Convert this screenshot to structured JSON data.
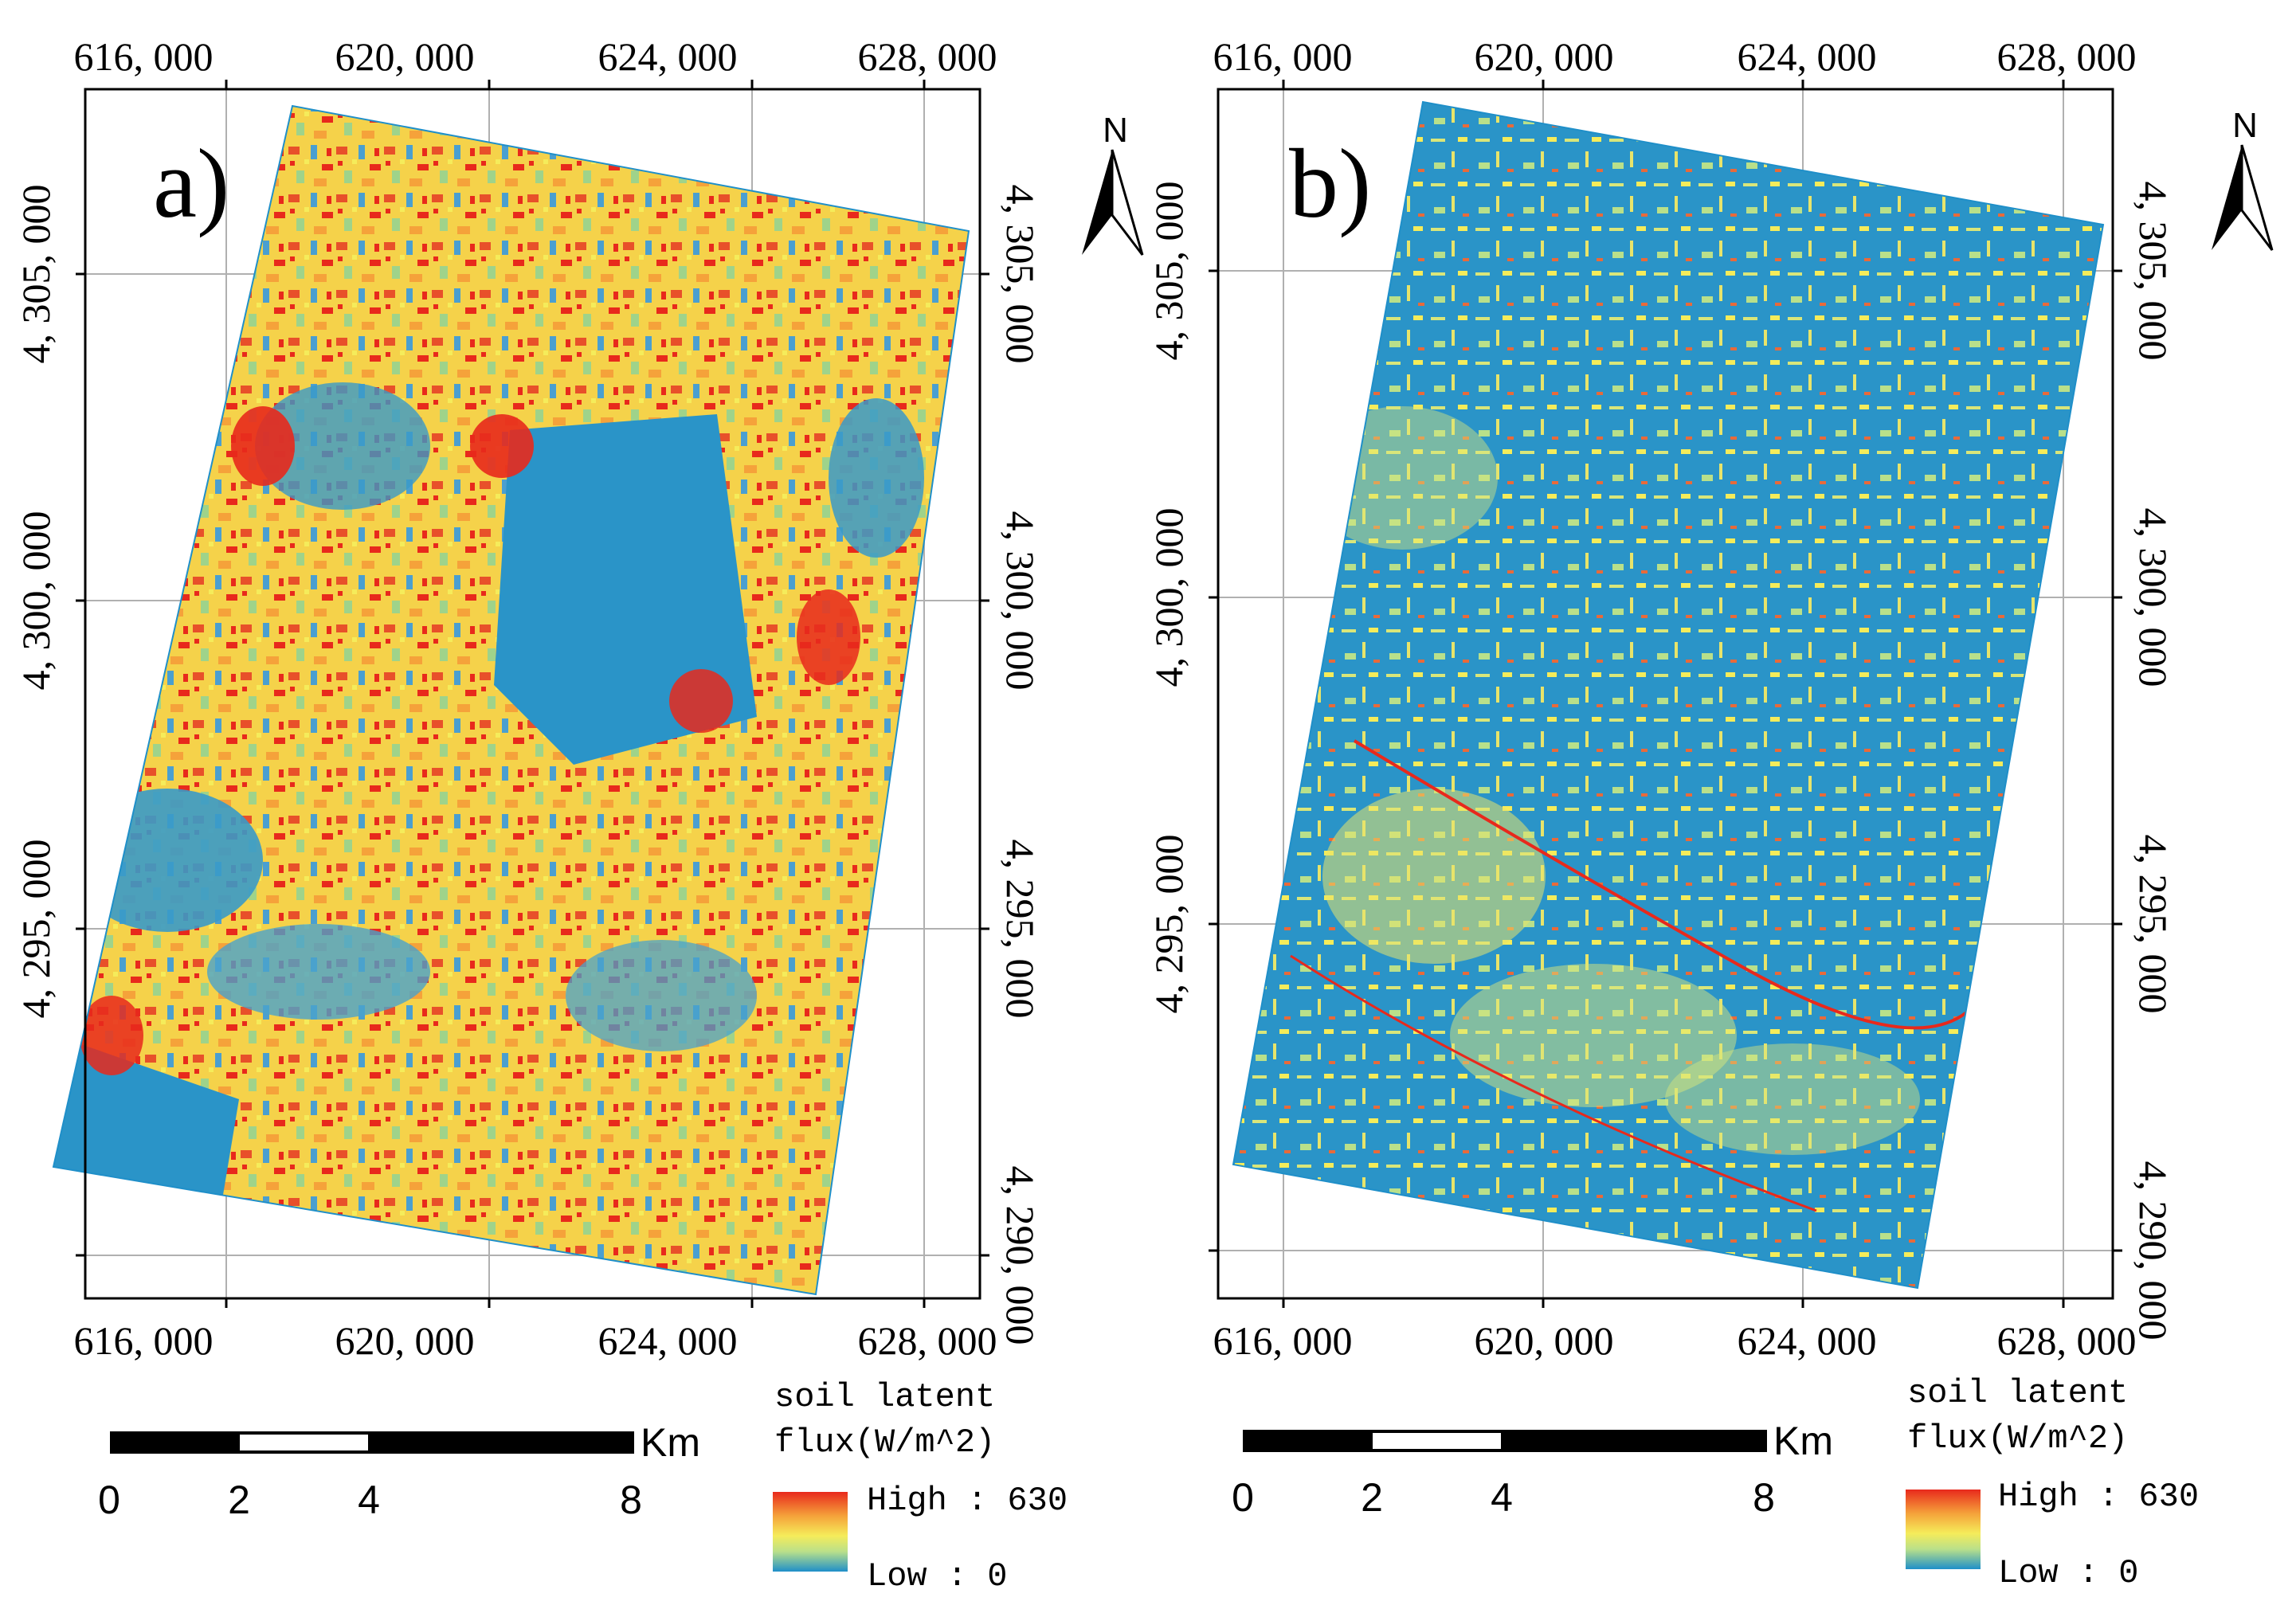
{
  "figure": {
    "panels": [
      {
        "label": "a)",
        "x_ticks": [
          "616, 000",
          "620, 000",
          "624, 000",
          "628, 000"
        ],
        "y_ticks": [
          "4, 305, 000",
          "4, 300, 000",
          "4, 295, 000",
          "4, 290, 000"
        ],
        "north": "N",
        "scale_bar": {
          "labels": [
            "0",
            "2",
            "4",
            "8"
          ],
          "unit": "Km"
        },
        "legend": {
          "title_line1": "soil latent",
          "title_line2": "flux(W/m^2)",
          "high_label": "High : 630",
          "low_label": "Low : 0",
          "high_value": 630,
          "low_value": 0
        },
        "dominant_tone": "warm"
      },
      {
        "label": "b)",
        "x_ticks": [
          "616, 000",
          "620, 000",
          "624, 000",
          "628, 000"
        ],
        "y_ticks": [
          "4, 305, 000",
          "4, 300, 000",
          "4, 295, 000",
          "4, 290, 000"
        ],
        "north": "N",
        "scale_bar": {
          "labels": [
            "0",
            "2",
            "4",
            "8"
          ],
          "unit": "Km"
        },
        "legend": {
          "title_line1": "soil latent",
          "title_line2": "flux(W/m^2)",
          "high_label": "High : 630",
          "low_label": "Low : 0",
          "high_value": 630,
          "low_value": 0
        },
        "dominant_tone": "cool"
      }
    ],
    "colors": {
      "high": "#e8291c",
      "orange": "#f5a23a",
      "yellow": "#f5ec5a",
      "mid_green": "#b9e08a",
      "low": "#1f8fc9",
      "frame": "#000000",
      "grid": "#b0b0b0"
    }
  }
}
